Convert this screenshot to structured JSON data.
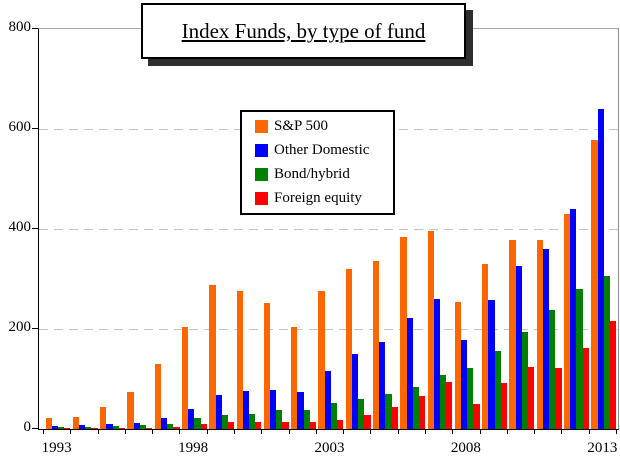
{
  "chart_data": {
    "type": "bar",
    "title": "Index Funds, by type of fund",
    "categories": [
      1993,
      1994,
      1995,
      1996,
      1997,
      1998,
      1999,
      2000,
      2001,
      2002,
      2003,
      2004,
      2005,
      2006,
      2007,
      2008,
      2009,
      2010,
      2011,
      2012,
      2013
    ],
    "series": [
      {
        "name": "S&P 500",
        "color": "#FF6600",
        "values": [
          22,
          25,
          45,
          74,
          131,
          205,
          289,
          276,
          253,
          205,
          277,
          321,
          336,
          384,
          396,
          255,
          331,
          379,
          378,
          431,
          578
        ]
      },
      {
        "name": "Other Domestic",
        "color": "#0000FE",
        "values": [
          7,
          8,
          10,
          13,
          22,
          40,
          68,
          76,
          79,
          74,
          116,
          150,
          174,
          222,
          261,
          179,
          259,
          327,
          361,
          441,
          640
        ]
      },
      {
        "name": "Bond/hybrid",
        "color": "#008000",
        "values": [
          4,
          4,
          6,
          8,
          11,
          23,
          29,
          30,
          38,
          38,
          52,
          60,
          70,
          85,
          108,
          122,
          157,
          194,
          238,
          281,
          307
        ]
      },
      {
        "name": "Foreign equity",
        "color": "#FE0000",
        "values": [
          2,
          2,
          2,
          3,
          5,
          10,
          15,
          14,
          14,
          14,
          18,
          29,
          44,
          67,
          95,
          50,
          93,
          124,
          122,
          162,
          216
        ]
      }
    ],
    "ylim": [
      0,
      800
    ],
    "yticks": [
      0,
      200,
      400,
      600,
      800
    ],
    "x_axis_labels": [
      {
        "label": "1993",
        "group_index": 0
      },
      {
        "label": "1998",
        "group_index": 5
      },
      {
        "label": "2003",
        "group_index": 10
      },
      {
        "label": "2008",
        "group_index": 15
      },
      {
        "label": "2013",
        "group_index": 20
      }
    ],
    "grid": {
      "horizontal_dashed_at": [
        200,
        400,
        600
      ],
      "color": "#c4c4c4"
    },
    "legend_position": "upper-center-left",
    "styles": {
      "plot_border_top_right": "#a0a0a0",
      "axis_color": "#000000",
      "title_shadow": "#2e2e2e",
      "background": "#ffffff"
    }
  }
}
